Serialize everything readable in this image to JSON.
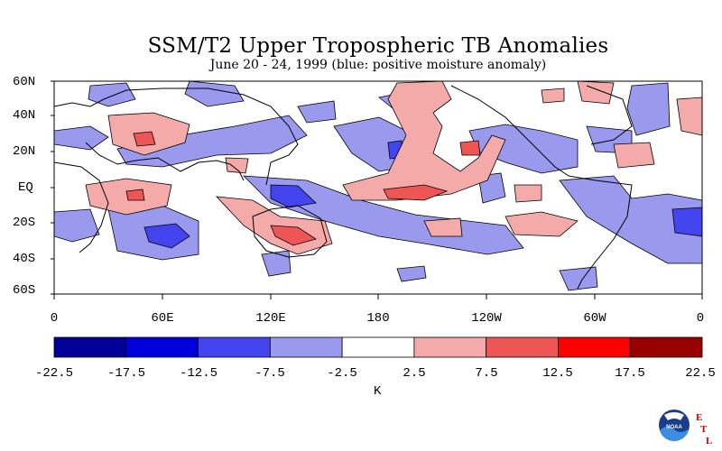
{
  "title": "SSM/T2 Upper Tropospheric TB Anomalies",
  "subtitle": "June 20 - 24, 1999 (blue: positive moisture anomaly)",
  "lat_labels": [
    "60N",
    "40N",
    "20N",
    "EQ",
    "20S",
    "40S",
    "60S"
  ],
  "lon_labels": [
    "0",
    "60E",
    "120E",
    "180",
    "120W",
    "60W",
    "0"
  ],
  "colorbar": {
    "unit": "K",
    "ticks": [
      "-22.5",
      "-17.5",
      "-12.5",
      "-7.5",
      "-2.5",
      "2.5",
      "7.5",
      "12.5",
      "17.5",
      "22.5"
    ],
    "colors": [
      "#000099",
      "#0000dd",
      "#4444ee",
      "#9999ee",
      "#ffffff",
      "#f5aaaa",
      "#ee5555",
      "#ff0000",
      "#990000"
    ]
  },
  "colors": {
    "neg_light": "#9999ee",
    "neg_mid": "#4444ee",
    "pos_light": "#f5aaaa",
    "pos_mid": "#ee5555"
  },
  "logo": {
    "text": "NOAA",
    "letters": [
      "E",
      "T",
      "L"
    ]
  }
}
